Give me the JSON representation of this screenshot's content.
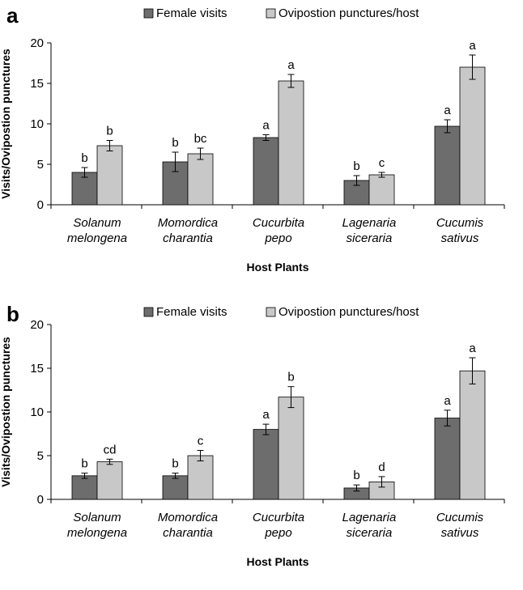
{
  "colors": {
    "female": "#6d6d6d",
    "oviposition": "#c8c8c8",
    "outline": "#000000"
  },
  "chart_data": [
    {
      "type": "bar",
      "panel_label": "a",
      "categories": [
        [
          "Solanum",
          "melongena"
        ],
        [
          "Momordica",
          "charantia"
        ],
        [
          "Cucurbita",
          "pepo"
        ],
        [
          "Lagenaria",
          "siceraria"
        ],
        [
          "Cucumis",
          "sativus"
        ]
      ],
      "series": [
        {
          "name": "Female visits",
          "values": [
            4.0,
            5.3,
            8.3,
            3.0,
            9.7
          ],
          "errors": [
            0.6,
            1.2,
            0.35,
            0.6,
            0.8
          ],
          "letters": [
            "b",
            "b",
            "a",
            "b",
            "a"
          ]
        },
        {
          "name": "Ovipostion punctures/host",
          "values": [
            7.3,
            6.3,
            15.3,
            3.7,
            17.0
          ],
          "errors": [
            0.65,
            0.7,
            0.8,
            0.3,
            1.5
          ],
          "letters": [
            "b",
            "bc",
            "a",
            "c",
            "a"
          ]
        }
      ],
      "xlabel": "Host Plants",
      "ylabel": "Visits/Ovipostion punctures",
      "ylim": [
        0,
        20
      ],
      "yticks": [
        0,
        5,
        10,
        15,
        20
      ],
      "legend": "top",
      "grid": false
    },
    {
      "type": "bar",
      "panel_label": "b",
      "categories": [
        [
          "Solanum",
          "melongena"
        ],
        [
          "Momordica",
          "charantia"
        ],
        [
          "Cucurbita",
          "pepo"
        ],
        [
          "Lagenaria",
          "siceraria"
        ],
        [
          "Cucumis",
          "sativus"
        ]
      ],
      "series": [
        {
          "name": "Female visits",
          "values": [
            2.7,
            2.7,
            8.0,
            1.3,
            9.3
          ],
          "errors": [
            0.3,
            0.3,
            0.6,
            0.35,
            0.9
          ],
          "letters": [
            "b",
            "b",
            "a",
            "b",
            "a"
          ]
        },
        {
          "name": "Ovipostion punctures/host",
          "values": [
            4.3,
            5.0,
            11.7,
            2.0,
            14.7
          ],
          "errors": [
            0.3,
            0.6,
            1.2,
            0.6,
            1.5
          ],
          "letters": [
            "cd",
            "c",
            "b",
            "d",
            "a"
          ]
        }
      ],
      "xlabel": "Host Plants",
      "ylabel": "Visits/Ovipostion punctures",
      "ylim": [
        0,
        20
      ],
      "yticks": [
        0,
        5,
        10,
        15,
        20
      ],
      "legend": "top",
      "grid": false
    }
  ]
}
